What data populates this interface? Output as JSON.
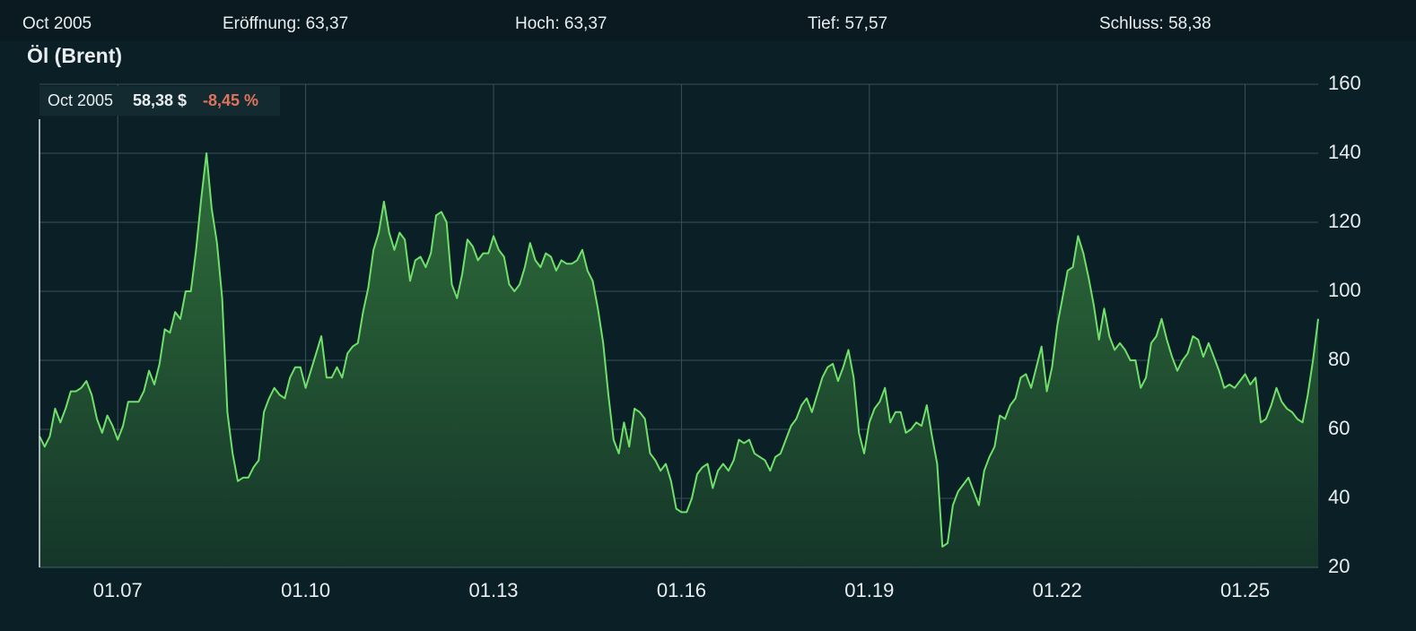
{
  "header": {
    "period": "Oct 2005",
    "open": "Eröffnung: 63,37",
    "high": "Hoch: 63,37",
    "low": "Tief: 57,57",
    "close": "Schluss: 58,38"
  },
  "tooltip": {
    "period": "Oct 2005",
    "price": "58,38 $",
    "change": "-8,45 %"
  },
  "chart_data": {
    "type": "area",
    "title": "Öl (Brent)",
    "color": "#6fe06a",
    "grid": true,
    "x": [
      "10.05",
      "11.05",
      "12.05",
      "01.06",
      "02.06",
      "03.06",
      "04.06",
      "05.06",
      "06.06",
      "07.06",
      "08.06",
      "09.06",
      "10.06",
      "11.06",
      "12.06",
      "01.07",
      "02.07",
      "03.07",
      "04.07",
      "05.07",
      "06.07",
      "07.07",
      "08.07",
      "09.07",
      "10.07",
      "11.07",
      "12.07",
      "01.08",
      "02.08",
      "03.08",
      "04.08",
      "05.08",
      "06.08",
      "07.08",
      "08.08",
      "09.08",
      "10.08",
      "11.08",
      "12.08",
      "01.09",
      "02.09",
      "03.09",
      "04.09",
      "05.09",
      "06.09",
      "07.09",
      "08.09",
      "09.09",
      "10.09",
      "11.09",
      "12.09",
      "01.10",
      "02.10",
      "03.10",
      "04.10",
      "05.10",
      "06.10",
      "07.10",
      "08.10",
      "09.10",
      "10.10",
      "11.10",
      "12.10",
      "01.11",
      "02.11",
      "03.11",
      "04.11",
      "05.11",
      "06.11",
      "07.11",
      "08.11",
      "09.11",
      "10.11",
      "11.11",
      "12.11",
      "01.12",
      "02.12",
      "03.12",
      "04.12",
      "05.12",
      "06.12",
      "07.12",
      "08.12",
      "09.12",
      "10.12",
      "11.12",
      "12.12",
      "01.13",
      "02.13",
      "03.13",
      "04.13",
      "05.13",
      "06.13",
      "07.13",
      "08.13",
      "09.13",
      "10.13",
      "11.13",
      "12.13",
      "01.14",
      "02.14",
      "03.14",
      "04.14",
      "05.14",
      "06.14",
      "07.14",
      "08.14",
      "09.14",
      "10.14",
      "11.14",
      "12.14",
      "01.15",
      "02.15",
      "03.15",
      "04.15",
      "05.15",
      "06.15",
      "07.15",
      "08.15",
      "09.15",
      "10.15",
      "11.15",
      "12.15",
      "01.16",
      "02.16",
      "03.16",
      "04.16",
      "05.16",
      "06.16",
      "07.16",
      "08.16",
      "09.16",
      "10.16",
      "11.16",
      "12.16",
      "01.17",
      "02.17",
      "03.17",
      "04.17",
      "05.17",
      "06.17",
      "07.17",
      "08.17",
      "09.17",
      "10.17",
      "11.17",
      "12.17",
      "01.18",
      "02.18",
      "03.18",
      "04.18",
      "05.18",
      "06.18",
      "07.18",
      "08.18",
      "09.18",
      "10.18",
      "11.18",
      "12.18",
      "01.19",
      "02.19",
      "03.19",
      "04.19",
      "05.19",
      "06.19",
      "07.19",
      "08.19",
      "09.19",
      "10.19",
      "11.19",
      "12.19",
      "01.20",
      "02.20",
      "03.20",
      "04.20",
      "05.20",
      "06.20",
      "07.20",
      "08.20",
      "09.20",
      "10.20",
      "11.20",
      "12.20",
      "01.21",
      "02.21",
      "03.21",
      "04.21",
      "05.21",
      "06.21",
      "07.21",
      "08.21",
      "09.21",
      "10.21",
      "11.21",
      "12.21",
      "01.22",
      "02.22",
      "03.22",
      "04.22",
      "05.22",
      "06.22",
      "07.22",
      "08.22",
      "09.22",
      "10.22",
      "11.22",
      "12.22",
      "01.23",
      "02.23",
      "03.23",
      "04.23",
      "05.23",
      "06.23",
      "07.23",
      "08.23",
      "09.23",
      "10.23",
      "11.23",
      "12.23",
      "01.24",
      "02.24",
      "03.24",
      "04.24",
      "05.24",
      "06.24",
      "07.24",
      "08.24",
      "09.24",
      "10.24",
      "11.24",
      "12.24",
      "01.25",
      "02.25",
      "03.25",
      "04.25",
      "05.25",
      "06.25",
      "07.25",
      "08.25",
      "09.25",
      "10.25",
      "11.25",
      "12.25",
      "01.26",
      "02.26",
      "03.26"
    ],
    "values": [
      58,
      55,
      58,
      66,
      62,
      66,
      71,
      71,
      72,
      74,
      70,
      63,
      59,
      64,
      61,
      57,
      61,
      68,
      68,
      68,
      71,
      77,
      73,
      79,
      89,
      88,
      94,
      92,
      100,
      100,
      112,
      127,
      140,
      124,
      114,
      98,
      65,
      53,
      45,
      46,
      46,
      49,
      51,
      65,
      69,
      72,
      70,
      69,
      75,
      78,
      78,
      72,
      77,
      82,
      87,
      75,
      75,
      78,
      75,
      82,
      84,
      85,
      94,
      101,
      112,
      117,
      126,
      117,
      112,
      117,
      115,
      103,
      109,
      110,
      107,
      111,
      122,
      123,
      120,
      102,
      98,
      105,
      115,
      113,
      109,
      111,
      111,
      116,
      112,
      110,
      102,
      100,
      102,
      107,
      114,
      109,
      107,
      111,
      110,
      106,
      109,
      108,
      108,
      109,
      112,
      106,
      103,
      95,
      85,
      70,
      57,
      53,
      62,
      55,
      66,
      65,
      63,
      53,
      51,
      48,
      50,
      45,
      37,
      36,
      36,
      40,
      47,
      49,
      50,
      43,
      48,
      50,
      48,
      51,
      57,
      56,
      57,
      53,
      52,
      51,
      48,
      52,
      53,
      57,
      61,
      63,
      67,
      69,
      65,
      70,
      75,
      78,
      79,
      74,
      78,
      83,
      75,
      59,
      53,
      62,
      66,
      68,
      72,
      62,
      65,
      65,
      59,
      60,
      62,
      61,
      67,
      58,
      50,
      26,
      27,
      38,
      42,
      44,
      46,
      42,
      38,
      48,
      52,
      55,
      64,
      63,
      67,
      69,
      75,
      76,
      72,
      78,
      84,
      71,
      78,
      90,
      98,
      106,
      107,
      116,
      111,
      104,
      96,
      86,
      95,
      87,
      83,
      85,
      83,
      80,
      80,
      72,
      75,
      85,
      87,
      92,
      86,
      81,
      77,
      80,
      82,
      87,
      86,
      81,
      85,
      81,
      77,
      72,
      73,
      72,
      74,
      76,
      73,
      75,
      62,
      63,
      67,
      72,
      68,
      66,
      65,
      63,
      62,
      70,
      80,
      92
    ],
    "xticks": [
      "01.07",
      "01.10",
      "01.13",
      "01.16",
      "01.19",
      "01.22",
      "01.25"
    ],
    "ylim": [
      20,
      160
    ],
    "yticks": [
      20,
      40,
      60,
      80,
      100,
      120,
      140,
      160
    ]
  }
}
